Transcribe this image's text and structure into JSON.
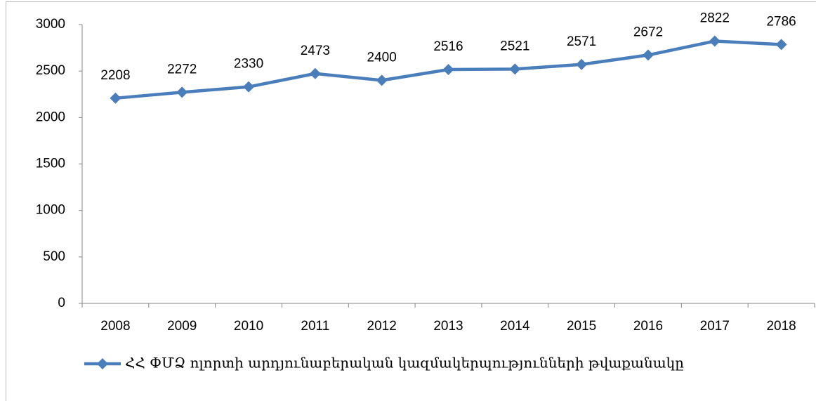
{
  "chart_data": {
    "type": "line",
    "categories": [
      "2008",
      "2009",
      "2010",
      "2011",
      "2012",
      "2013",
      "2014",
      "2015",
      "2016",
      "2017",
      "2018"
    ],
    "series": [
      {
        "name": "ՀՀ ՓՄՁ ոլորտի արդյունաբերական կազմակերպությունների թվաքանակը",
        "color": "#4a7ebb",
        "values": [
          2208,
          2272,
          2330,
          2473,
          2400,
          2516,
          2521,
          2571,
          2672,
          2822,
          2786
        ]
      }
    ],
    "ylim": [
      0,
      3000
    ],
    "yticks": [
      0,
      500,
      1000,
      1500,
      2000,
      2500,
      3000
    ],
    "legend": "bottom",
    "data_labels": true
  }
}
